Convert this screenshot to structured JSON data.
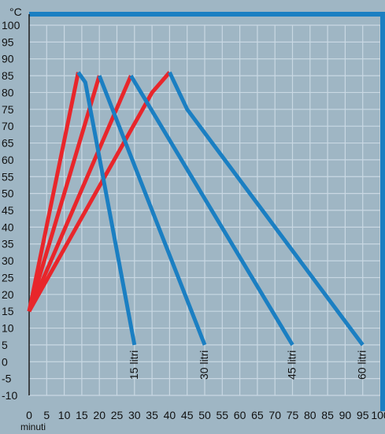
{
  "chart_data": {
    "type": "line",
    "title": "",
    "xlabel": "minuti",
    "ylabel": "°C",
    "xlim": [
      0,
      100
    ],
    "ylim": [
      -10,
      100
    ],
    "xticks": [
      "0",
      "5",
      "10",
      "15",
      "20",
      "25",
      "30",
      "35",
      "40",
      "45",
      "50",
      "55",
      "60",
      "65",
      "70",
      "75",
      "80",
      "85",
      "90",
      "95",
      "100"
    ],
    "yticks": [
      "100",
      "95",
      "90",
      "85",
      "80",
      "75",
      "70",
      "65",
      "60",
      "55",
      "50",
      "45",
      "40",
      "35",
      "30",
      "25",
      "20",
      "15",
      "10",
      "5",
      "0",
      "-5",
      "-10"
    ],
    "grid": true,
    "colors": {
      "heating": "#e8262b",
      "cooling": "#1b7fc2",
      "frame": "#1b7fc2",
      "grid": "#c9d8e3",
      "background": "#9fb6c4"
    },
    "series": [
      {
        "kind": "heating",
        "points": [
          [
            0,
            15
          ],
          [
            14,
            86
          ]
        ]
      },
      {
        "kind": "heating",
        "points": [
          [
            0,
            15
          ],
          [
            20,
            85
          ]
        ]
      },
      {
        "kind": "heating",
        "points": [
          [
            0,
            15
          ],
          [
            29,
            85
          ]
        ]
      },
      {
        "kind": "heating",
        "points": [
          [
            0,
            15
          ],
          [
            35,
            80
          ],
          [
            40,
            86
          ]
        ]
      },
      {
        "kind": "cooling",
        "name": "15 litri",
        "points": [
          [
            14,
            86
          ],
          [
            16,
            83
          ],
          [
            30,
            5
          ]
        ]
      },
      {
        "kind": "cooling",
        "name": "30 litri",
        "points": [
          [
            20,
            85
          ],
          [
            50,
            5
          ]
        ]
      },
      {
        "kind": "cooling",
        "name": "45 litri",
        "points": [
          [
            29,
            85
          ],
          [
            75,
            5
          ]
        ]
      },
      {
        "kind": "cooling",
        "name": "60 litri",
        "points": [
          [
            40,
            86
          ],
          [
            45,
            75
          ],
          [
            95,
            5
          ]
        ]
      }
    ]
  }
}
